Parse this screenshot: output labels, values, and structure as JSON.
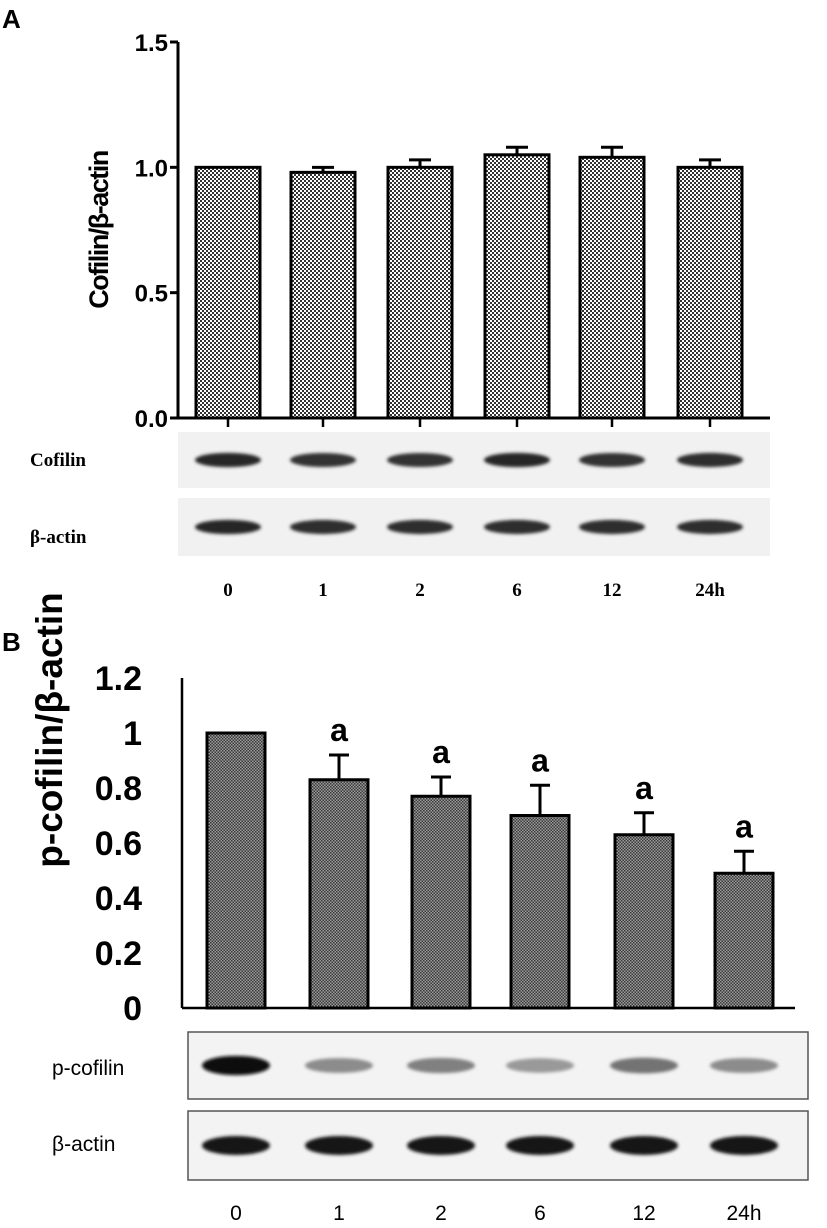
{
  "chart_data": [
    {
      "panel": "A",
      "type": "bar",
      "ylabel": "Cofilin/β-actin",
      "ylim": [
        0,
        1.5
      ],
      "yticks": [
        "0.0",
        "0.5",
        "1.0",
        "1.5"
      ],
      "categories": [
        "0",
        "1",
        "2",
        "6",
        "12",
        "24h"
      ],
      "values": [
        1.0,
        0.98,
        1.0,
        1.05,
        1.04,
        1.0
      ],
      "errors": [
        0.0,
        0.02,
        0.03,
        0.03,
        0.04,
        0.03
      ],
      "significance": [
        "",
        "",
        "",
        "",
        "",
        ""
      ],
      "blot_lanes": [
        "Cofilin",
        "β-actin"
      ],
      "blot_intensity": [
        [
          0.85,
          0.8,
          0.8,
          0.85,
          0.8,
          0.82
        ],
        [
          0.85,
          0.82,
          0.82,
          0.82,
          0.82,
          0.82
        ]
      ],
      "bar_fill": "#8c8c8c"
    },
    {
      "panel": "B",
      "type": "bar",
      "ylabel": "p-cofilin/β-actin",
      "ylim": [
        0,
        1.2
      ],
      "yticks": [
        "0",
        "0.2",
        "0.4",
        "0.6",
        "0.8",
        "1",
        "1.2"
      ],
      "categories": [
        "0",
        "1",
        "2",
        "6",
        "12",
        "24h"
      ],
      "values": [
        1.0,
        0.83,
        0.77,
        0.7,
        0.63,
        0.49
      ],
      "errors": [
        0.0,
        0.09,
        0.07,
        0.11,
        0.08,
        0.08
      ],
      "significance": [
        "",
        "a",
        "a",
        "a",
        "a",
        "a"
      ],
      "blot_lanes": [
        "p-cofilin",
        "β-actin"
      ],
      "blot_intensity": [
        [
          0.95,
          0.45,
          0.5,
          0.4,
          0.55,
          0.45
        ],
        [
          0.9,
          0.9,
          0.9,
          0.9,
          0.9,
          0.9
        ]
      ],
      "bar_fill": "#707070"
    }
  ]
}
